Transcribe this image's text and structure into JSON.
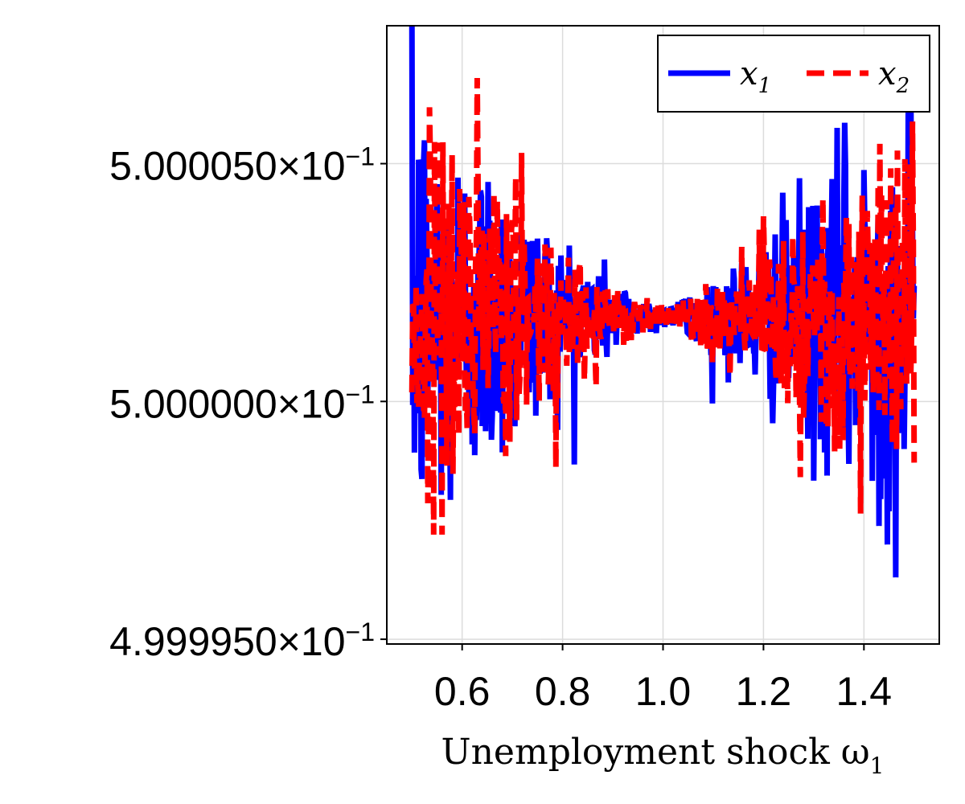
{
  "chart_data": {
    "type": "line",
    "xlabel": "Unemployment shock ω",
    "xlabel_subscript": "1",
    "xlim": [
      0.45,
      1.55
    ],
    "ylim": [
      0.4999949,
      0.5000079
    ],
    "x_ticks": [
      0.6,
      0.8,
      1.0,
      1.2,
      1.4
    ],
    "x_tick_labels": [
      "0.6",
      "0.8",
      "1.0",
      "1.2",
      "1.4"
    ],
    "y_ticks": [
      0.499995,
      0.5,
      0.500005
    ],
    "y_tick_labels": [
      {
        "mantissa": "4.999950",
        "exp": "−1"
      },
      {
        "mantissa": "5.000000",
        "exp": "−1"
      },
      {
        "mantissa": "5.000050",
        "exp": "−1"
      }
    ],
    "grid": true,
    "legend_position": "top-right",
    "legend_orientation": "horizontal",
    "x_domain": [
      0.5,
      1.5
    ],
    "center_value": 0.5000018,
    "series": [
      {
        "name": "x",
        "name_subscript": "1",
        "color": "#0000ff",
        "style": "solid",
        "amplitude_at_edge": 2.7e-06,
        "extreme_max": 0.5000081,
        "extreme_min": 0.4999963
      },
      {
        "name": "x",
        "name_subscript": "2",
        "color": "#ff0000",
        "style": "dashed",
        "amplitude_at_edge": 2.5e-06,
        "extreme_max": 0.5000068,
        "extreme_min": 0.4999972
      }
    ]
  }
}
